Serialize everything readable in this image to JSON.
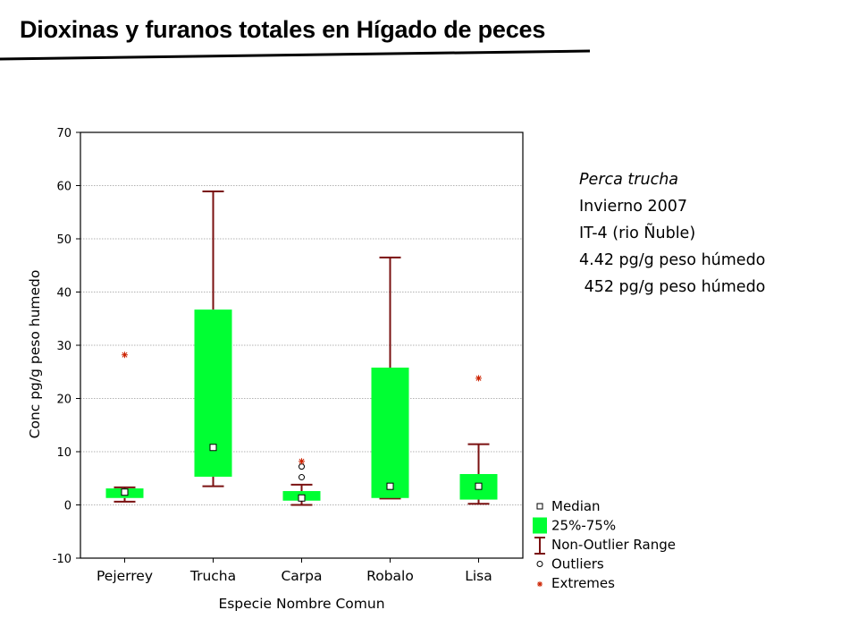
{
  "slide": {
    "title": "Dioxinas y furanos totales en Hígado de peces"
  },
  "annotation": {
    "lines": [
      "Perca trucha",
      "Invierno 2007",
      "IT-4 (rio Ñuble)",
      "4.42 pg/g peso húmedo",
      " 452 pg/g peso húmedo"
    ]
  },
  "colors": {
    "box_fill": "#00ff33",
    "whisker": "#7a1010",
    "extreme": "#cc2200",
    "grid": "#9a9a9a"
  },
  "chart_data": {
    "type": "boxplot",
    "title": "",
    "xlabel": "Especie Nombre Comun",
    "ylabel": "Conc pg/g peso humedo",
    "ylim": [
      -10,
      70
    ],
    "yticks": [
      -10,
      0,
      10,
      20,
      30,
      40,
      50,
      60,
      70
    ],
    "grid": true,
    "legend_position": "bottom-right",
    "categories": [
      "Pejerrey",
      "Trucha",
      "Carpa",
      "Robalo",
      "Lisa"
    ],
    "boxes": [
      {
        "category": "Pejerrey",
        "median": 2.4,
        "q1": 1.3,
        "q3": 3.1,
        "whisker_low": 0.6,
        "whisker_high": 3.3,
        "outliers": [],
        "extremes": [
          28.2
        ]
      },
      {
        "category": "Trucha",
        "median": 10.8,
        "q1": 5.3,
        "q3": 36.7,
        "whisker_low": 3.5,
        "whisker_high": 58.9,
        "outliers": [],
        "extremes": []
      },
      {
        "category": "Carpa",
        "median": 1.3,
        "q1": 0.8,
        "q3": 2.6,
        "whisker_low": 0.0,
        "whisker_high": 3.8,
        "outliers": [
          5.2,
          7.2
        ],
        "extremes": [
          8.2
        ]
      },
      {
        "category": "Robalo",
        "median": 3.5,
        "q1": 1.3,
        "q3": 25.8,
        "whisker_low": 1.2,
        "whisker_high": 46.5,
        "outliers": [],
        "extremes": []
      },
      {
        "category": "Lisa",
        "median": 3.5,
        "q1": 1.0,
        "q3": 5.8,
        "whisker_low": 0.2,
        "whisker_high": 11.4,
        "outliers": [],
        "extremes": [
          23.8
        ]
      }
    ],
    "legend": [
      "Median",
      "25%-75%",
      "Non-Outlier Range",
      "Outliers",
      "Extremes"
    ]
  }
}
